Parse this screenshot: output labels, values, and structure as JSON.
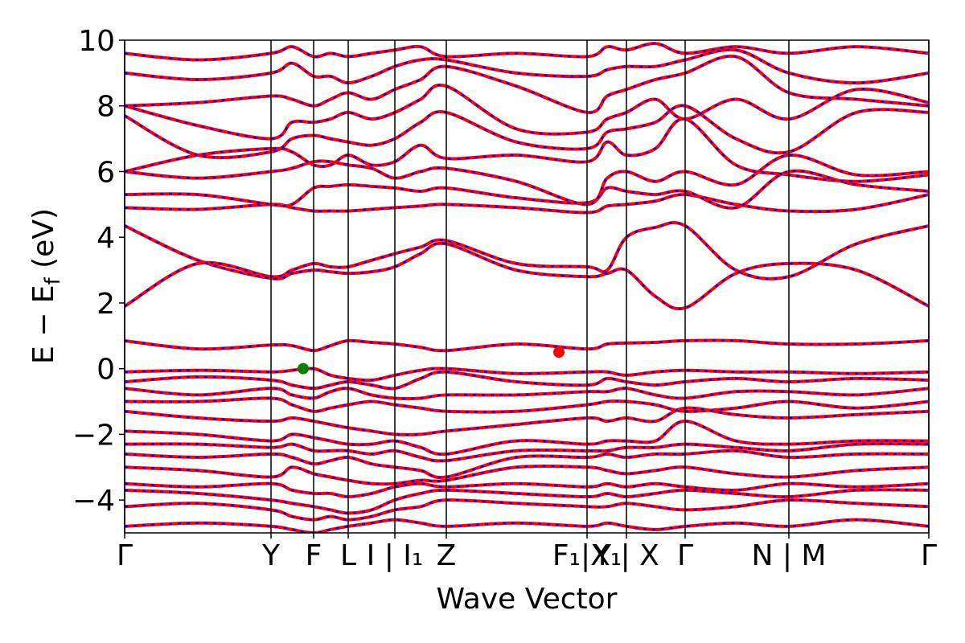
{
  "chart_data": {
    "type": "line",
    "xlabel": "Wave Vector",
    "ylabel": [
      "E − E",
      "f",
      " (eV)"
    ],
    "xlim": [
      0,
      10
    ],
    "ylim": [
      -5,
      10
    ],
    "xticks": [
      {
        "value": 0,
        "label": "Γ"
      },
      {
        "value": 1.82,
        "label": "Y"
      },
      {
        "value": 2.35,
        "label": "F"
      },
      {
        "value": 2.78,
        "label": "L"
      },
      {
        "value": 3.36,
        "label": "I | I₁"
      },
      {
        "value": 4.0,
        "label": "Z"
      },
      {
        "value": 5.75,
        "label": "F₁|X₁"
      },
      {
        "value": 6.24,
        "label": "Y | X"
      },
      {
        "value": 6.97,
        "label": "Γ"
      },
      {
        "value": 8.26,
        "label": "N | M"
      },
      {
        "value": 10.0,
        "label": "Γ"
      }
    ],
    "yticks": [
      {
        "value": -4,
        "label": "−4"
      },
      {
        "value": -2,
        "label": "−2"
      },
      0,
      2,
      4,
      6,
      8,
      10
    ],
    "xgrid": true,
    "line_color": "#ff0000",
    "dash_color": "#0000ff",
    "x": [
      0,
      0.91,
      1.82,
      2.08,
      2.35,
      2.56,
      2.78,
      3.07,
      3.36,
      3.68,
      4.0,
      4.87,
      5.75,
      6.0,
      6.24,
      6.6,
      6.97,
      7.6,
      8.26,
      9.1,
      10.0
    ],
    "bands": [
      {
        "values": [
          1.9,
          3.2,
          2.8,
          3.0,
          3.2,
          3.1,
          3.1,
          3.3,
          3.5,
          3.7,
          3.9,
          3.2,
          3.1,
          3.0,
          4.0,
          4.3,
          4.35,
          3.0,
          2.8,
          3.8,
          4.35
        ]
      },
      {
        "values": [
          4.35,
          3.3,
          2.75,
          2.9,
          3.0,
          2.95,
          2.9,
          2.95,
          3.1,
          3.5,
          3.8,
          3.0,
          2.8,
          2.9,
          3.0,
          2.2,
          1.85,
          2.9,
          3.2,
          3.0,
          1.9
        ]
      },
      {
        "values": [
          4.9,
          4.85,
          5.0,
          4.9,
          4.8,
          4.8,
          4.8,
          4.85,
          4.9,
          4.95,
          5.0,
          4.9,
          4.75,
          4.95,
          5.0,
          5.1,
          5.3,
          5.0,
          4.8,
          4.85,
          5.3
        ]
      },
      {
        "values": [
          5.3,
          5.3,
          5.0,
          5.0,
          5.5,
          5.55,
          5.6,
          5.55,
          5.5,
          5.4,
          5.5,
          5.2,
          5.05,
          5.5,
          5.4,
          5.3,
          5.4,
          4.9,
          6.0,
          5.6,
          5.4
        ]
      },
      {
        "values": [
          6.0,
          5.8,
          6.0,
          6.1,
          6.3,
          6.3,
          6.2,
          6.1,
          5.8,
          6.0,
          6.1,
          5.7,
          5.0,
          5.8,
          6.0,
          5.7,
          6.0,
          5.6,
          6.5,
          5.9,
          6.0
        ]
      },
      {
        "values": [
          6.0,
          6.5,
          6.7,
          6.6,
          6.2,
          6.2,
          6.5,
          6.2,
          6.3,
          6.8,
          6.4,
          6.5,
          6.3,
          6.9,
          6.5,
          6.7,
          7.6,
          6.2,
          5.9,
          5.7,
          5.9
        ]
      },
      {
        "values": [
          7.7,
          6.5,
          6.6,
          7.0,
          7.1,
          7.0,
          6.9,
          6.8,
          7.0,
          7.5,
          7.8,
          6.9,
          6.7,
          7.2,
          7.3,
          7.5,
          8.0,
          7.0,
          6.6,
          7.8,
          7.8
        ]
      },
      {
        "values": [
          8.0,
          7.4,
          7.0,
          7.5,
          7.5,
          7.6,
          7.8,
          7.6,
          7.8,
          8.2,
          8.6,
          7.3,
          7.2,
          7.6,
          7.8,
          8.2,
          7.6,
          8.2,
          7.6,
          8.5,
          8.1
        ]
      },
      {
        "values": [
          8.0,
          8.1,
          8.3,
          8.2,
          8.0,
          8.2,
          8.4,
          8.2,
          8.5,
          8.8,
          9.2,
          8.6,
          7.8,
          8.3,
          8.5,
          8.8,
          9.0,
          9.5,
          8.4,
          8.2,
          8.0
        ]
      },
      {
        "values": [
          9.0,
          8.8,
          9.0,
          9.3,
          8.9,
          8.9,
          8.7,
          8.9,
          9.2,
          9.4,
          9.4,
          9.0,
          8.9,
          9.1,
          9.2,
          9.2,
          9.4,
          9.7,
          9.0,
          8.7,
          9.0
        ]
      },
      {
        "values": [
          9.6,
          9.4,
          9.6,
          9.8,
          9.5,
          9.6,
          9.5,
          9.6,
          9.7,
          9.8,
          9.5,
          9.6,
          9.5,
          9.8,
          9.7,
          9.9,
          9.6,
          9.8,
          9.6,
          9.8,
          9.6
        ]
      },
      {
        "values": [
          0.85,
          0.6,
          0.72,
          0.7,
          0.55,
          0.7,
          0.85,
          0.8,
          0.75,
          0.65,
          0.55,
          0.75,
          0.6,
          0.75,
          0.78,
          0.8,
          0.85,
          0.85,
          0.75,
          0.75,
          0.85
        ]
      },
      {
        "values": [
          -0.1,
          -0.05,
          -0.1,
          -0.05,
          0.0,
          -0.2,
          -0.3,
          -0.35,
          -0.2,
          -0.05,
          0.0,
          -0.15,
          -0.1,
          -0.1,
          -0.2,
          -0.1,
          -0.05,
          -0.1,
          -0.1,
          -0.15,
          -0.1
        ]
      },
      {
        "values": [
          -0.4,
          -0.25,
          -0.35,
          -0.5,
          -0.6,
          -0.5,
          -0.4,
          -0.5,
          -0.6,
          -0.3,
          -0.1,
          -0.4,
          -0.5,
          -0.3,
          -0.4,
          -0.5,
          -0.4,
          -0.3,
          -0.4,
          -0.3,
          -0.35
        ]
      },
      {
        "values": [
          -0.6,
          -0.8,
          -0.6,
          -0.8,
          -0.9,
          -0.7,
          -0.6,
          -0.8,
          -0.9,
          -0.9,
          -0.8,
          -0.8,
          -0.7,
          -0.7,
          -0.6,
          -0.8,
          -0.9,
          -0.7,
          -0.7,
          -0.8,
          -0.6
        ]
      },
      {
        "values": [
          -1.0,
          -1.0,
          -0.9,
          -1.1,
          -1.3,
          -1.2,
          -1.1,
          -1.0,
          -1.1,
          -1.2,
          -1.3,
          -1.3,
          -1.1,
          -1.0,
          -1.0,
          -1.1,
          -1.3,
          -1.2,
          -1.0,
          -1.2,
          -1.0
        ]
      },
      {
        "values": [
          -1.3,
          -1.5,
          -1.6,
          -1.5,
          -1.6,
          -1.7,
          -1.8,
          -1.9,
          -2.0,
          -2.0,
          -1.9,
          -1.7,
          -1.5,
          -1.6,
          -1.5,
          -1.6,
          -1.2,
          -1.4,
          -1.5,
          -1.4,
          -1.3
        ]
      },
      {
        "values": [
          -1.9,
          -2.0,
          -2.2,
          -2.0,
          -2.1,
          -2.2,
          -2.3,
          -2.3,
          -2.2,
          -2.4,
          -2.6,
          -2.2,
          -2.3,
          -2.2,
          -2.2,
          -2.2,
          -1.6,
          -2.2,
          -2.3,
          -2.2,
          -2.2
        ]
      },
      {
        "values": [
          -2.3,
          -2.3,
          -2.4,
          -2.3,
          -2.5,
          -2.5,
          -2.5,
          -2.6,
          -2.5,
          -2.7,
          -2.8,
          -2.5,
          -2.5,
          -2.5,
          -2.4,
          -2.4,
          -2.3,
          -2.4,
          -2.5,
          -2.3,
          -2.3
        ]
      },
      {
        "values": [
          -2.6,
          -2.7,
          -2.6,
          -2.7,
          -2.9,
          -2.8,
          -2.7,
          -2.9,
          -3.0,
          -3.1,
          -3.3,
          -2.7,
          -2.7,
          -2.6,
          -2.7,
          -2.6,
          -2.6,
          -2.5,
          -2.7,
          -2.6,
          -2.6
        ]
      },
      {
        "values": [
          -3.0,
          -3.1,
          -3.3,
          -3.0,
          -3.2,
          -3.3,
          -3.4,
          -3.5,
          -3.5,
          -3.4,
          -3.4,
          -3.0,
          -3.0,
          -3.1,
          -3.2,
          -3.1,
          -3.0,
          -3.2,
          -3.3,
          -3.1,
          -3.0
        ]
      },
      {
        "values": [
          -3.5,
          -3.6,
          -3.5,
          -3.7,
          -3.8,
          -3.8,
          -3.9,
          -3.8,
          -3.6,
          -3.5,
          -3.6,
          -3.5,
          -3.6,
          -3.5,
          -3.6,
          -3.5,
          -3.6,
          -3.7,
          -3.5,
          -3.6,
          -3.5
        ]
      },
      {
        "values": [
          -3.7,
          -3.8,
          -4.0,
          -4.1,
          -4.2,
          -4.3,
          -4.4,
          -4.3,
          -4.0,
          -3.8,
          -3.7,
          -3.8,
          -3.9,
          -3.8,
          -3.9,
          -3.8,
          -3.7,
          -3.8,
          -3.9,
          -3.7,
          -3.7
        ]
      },
      {
        "values": [
          -4.2,
          -4.1,
          -4.3,
          -4.5,
          -4.6,
          -4.5,
          -4.6,
          -4.5,
          -4.3,
          -4.2,
          -4.0,
          -4.1,
          -4.2,
          -4.2,
          -4.1,
          -4.2,
          -4.3,
          -4.2,
          -4.0,
          -4.1,
          -4.2
        ]
      },
      {
        "values": [
          -4.8,
          -4.7,
          -4.8,
          -4.9,
          -5.0,
          -4.9,
          -4.8,
          -4.7,
          -4.6,
          -4.7,
          -4.8,
          -4.7,
          -4.8,
          -4.7,
          -4.8,
          -4.9,
          -4.8,
          -4.7,
          -4.8,
          -4.6,
          -4.8
        ]
      }
    ],
    "markers": [
      {
        "x": 2.22,
        "y": 0.0,
        "color": "#008000"
      },
      {
        "x": 5.4,
        "y": 0.5,
        "color": "#ff0000"
      }
    ]
  }
}
